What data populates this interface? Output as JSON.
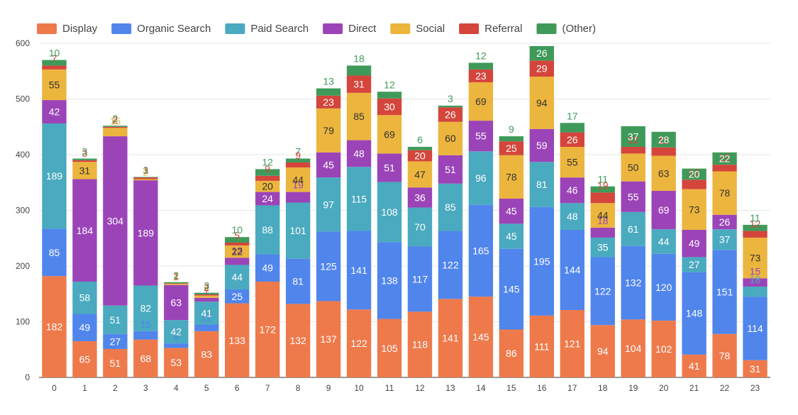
{
  "chart_data": {
    "type": "bar",
    "stacked": true,
    "title": "",
    "xlabel": "",
    "ylabel": "",
    "ylim": [
      0,
      600
    ],
    "yticks": [
      0,
      100,
      200,
      300,
      400,
      500,
      600
    ],
    "grid": true,
    "legend_position": "top",
    "categories": [
      "0",
      "1",
      "2",
      "3",
      "4",
      "5",
      "6",
      "7",
      "8",
      "9",
      "10",
      "11",
      "12",
      "13",
      "14",
      "15",
      "16",
      "17",
      "18",
      "19",
      "20",
      "21",
      "22",
      "23"
    ],
    "series": [
      {
        "name": "Display",
        "color": "#ee7a4c",
        "label_color": "#ffffff",
        "values": [
          182,
          65,
          51,
          68,
          53,
          83,
          133,
          172,
          132,
          137,
          122,
          105,
          118,
          141,
          145,
          86,
          111,
          121,
          94,
          104,
          102,
          41,
          78,
          31
        ]
      },
      {
        "name": "Organic Search",
        "color": "#5085ec",
        "label_color": "#ffffff",
        "values": [
          85,
          49,
          27,
          15,
          8,
          12,
          25,
          49,
          81,
          125,
          141,
          138,
          117,
          122,
          165,
          145,
          195,
          144,
          122,
          132,
          120,
          148,
          151,
          114
        ]
      },
      {
        "name": "Paid Search",
        "color": "#4aaabf",
        "label_color": "#ffffff",
        "values": [
          189,
          58,
          51,
          82,
          42,
          41,
          44,
          88,
          101,
          97,
          115,
          108,
          70,
          85,
          96,
          45,
          81,
          48,
          35,
          61,
          44,
          27,
          37,
          18
        ]
      },
      {
        "name": "Direct",
        "color": "#9b44b8",
        "label_color": "#ffffff",
        "values": [
          42,
          184,
          304,
          189,
          63,
          7,
          13,
          24,
          19,
          45,
          48,
          51,
          36,
          51,
          55,
          45,
          59,
          46,
          18,
          55,
          69,
          49,
          26,
          15
        ]
      },
      {
        "name": "Social",
        "color": "#ecb53d",
        "label_color": "#333333",
        "values": [
          55,
          31,
          15,
          2,
          2,
          4,
          22,
          20,
          44,
          79,
          85,
          69,
          47,
          60,
          69,
          78,
          94,
          55,
          44,
          50,
          63,
          73,
          78,
          73
        ]
      },
      {
        "name": "Referral",
        "color": "#d4453c",
        "label_color": "#ffffff",
        "values": [
          7,
          3,
          2,
          3,
          1,
          2,
          5,
          9,
          9,
          23,
          31,
          30,
          20,
          26,
          23,
          25,
          29,
          26,
          19,
          12,
          15,
          17,
          12,
          12
        ]
      },
      {
        "name": "(Other)",
        "color": "#3f9a5a",
        "label_color": "#ffffff",
        "values": [
          10,
          3,
          2,
          1,
          2,
          3,
          10,
          12,
          7,
          13,
          18,
          12,
          6,
          3,
          12,
          9,
          26,
          17,
          11,
          37,
          28,
          20,
          22,
          11
        ]
      }
    ]
  }
}
